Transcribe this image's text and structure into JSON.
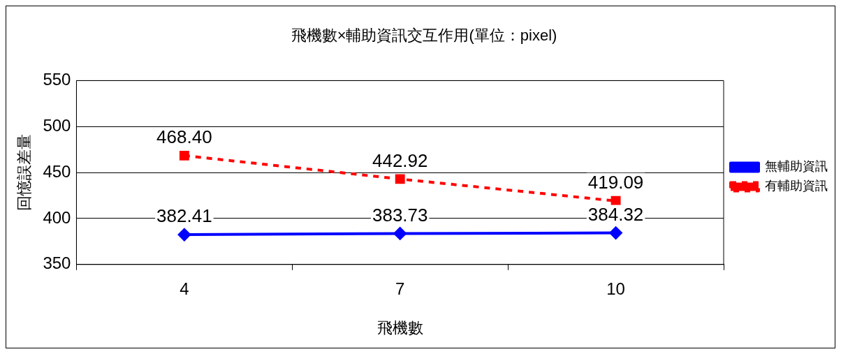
{
  "chart_data": {
    "type": "line",
    "title": "飛機數×輔助資訊交互作用(單位：pixel)",
    "xlabel": "飛機數",
    "ylabel": "回憶誤差量",
    "categories": [
      "4",
      "7",
      "10"
    ],
    "series": [
      {
        "name": "無輔助資訊",
        "color": "#0000ff",
        "values": [
          382.41,
          383.73,
          384.32
        ],
        "marker": "diamond",
        "line_style": "solid",
        "value_labels": [
          "382.41",
          "383.73",
          "384.32"
        ]
      },
      {
        "name": "有輔助資訊",
        "color": "#ff0000",
        "values": [
          468.4,
          442.92,
          419.09
        ],
        "marker": "square",
        "line_style": "dashed",
        "value_labels": [
          "468.40",
          "442.92",
          "419.09"
        ]
      }
    ],
    "ylim": [
      350,
      550
    ],
    "yticks": [
      350,
      400,
      450,
      500,
      550
    ],
    "grid": "y",
    "legend": "right"
  }
}
